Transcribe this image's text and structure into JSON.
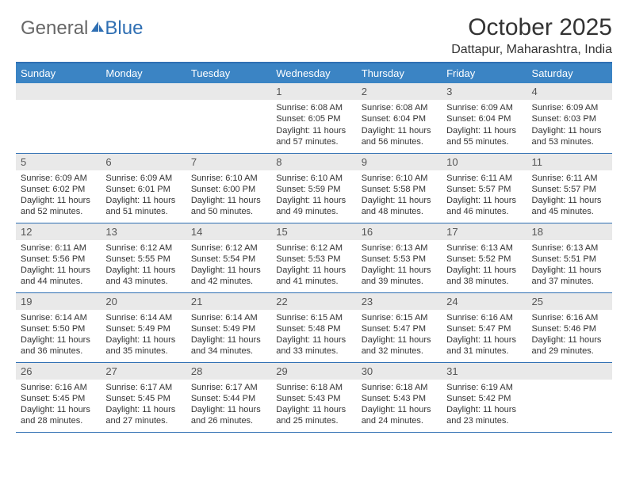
{
  "logo": {
    "text1": "General",
    "text2": "Blue"
  },
  "header": {
    "title": "October 2025",
    "subtitle": "Dattapur, Maharashtra, India"
  },
  "colors": {
    "accent": "#3b84c4",
    "rule": "#2f6fb3",
    "daybg": "#e9e9e9",
    "text": "#333333"
  },
  "calendar": {
    "day_labels": [
      "Sunday",
      "Monday",
      "Tuesday",
      "Wednesday",
      "Thursday",
      "Friday",
      "Saturday"
    ],
    "weeks": [
      [
        null,
        null,
        null,
        {
          "n": "1",
          "sr": "6:08 AM",
          "ss": "6:05 PM",
          "dl": "11 hours and 57 minutes."
        },
        {
          "n": "2",
          "sr": "6:08 AM",
          "ss": "6:04 PM",
          "dl": "11 hours and 56 minutes."
        },
        {
          "n": "3",
          "sr": "6:09 AM",
          "ss": "6:04 PM",
          "dl": "11 hours and 55 minutes."
        },
        {
          "n": "4",
          "sr": "6:09 AM",
          "ss": "6:03 PM",
          "dl": "11 hours and 53 minutes."
        }
      ],
      [
        {
          "n": "5",
          "sr": "6:09 AM",
          "ss": "6:02 PM",
          "dl": "11 hours and 52 minutes."
        },
        {
          "n": "6",
          "sr": "6:09 AM",
          "ss": "6:01 PM",
          "dl": "11 hours and 51 minutes."
        },
        {
          "n": "7",
          "sr": "6:10 AM",
          "ss": "6:00 PM",
          "dl": "11 hours and 50 minutes."
        },
        {
          "n": "8",
          "sr": "6:10 AM",
          "ss": "5:59 PM",
          "dl": "11 hours and 49 minutes."
        },
        {
          "n": "9",
          "sr": "6:10 AM",
          "ss": "5:58 PM",
          "dl": "11 hours and 48 minutes."
        },
        {
          "n": "10",
          "sr": "6:11 AM",
          "ss": "5:57 PM",
          "dl": "11 hours and 46 minutes."
        },
        {
          "n": "11",
          "sr": "6:11 AM",
          "ss": "5:57 PM",
          "dl": "11 hours and 45 minutes."
        }
      ],
      [
        {
          "n": "12",
          "sr": "6:11 AM",
          "ss": "5:56 PM",
          "dl": "11 hours and 44 minutes."
        },
        {
          "n": "13",
          "sr": "6:12 AM",
          "ss": "5:55 PM",
          "dl": "11 hours and 43 minutes."
        },
        {
          "n": "14",
          "sr": "6:12 AM",
          "ss": "5:54 PM",
          "dl": "11 hours and 42 minutes."
        },
        {
          "n": "15",
          "sr": "6:12 AM",
          "ss": "5:53 PM",
          "dl": "11 hours and 41 minutes."
        },
        {
          "n": "16",
          "sr": "6:13 AM",
          "ss": "5:53 PM",
          "dl": "11 hours and 39 minutes."
        },
        {
          "n": "17",
          "sr": "6:13 AM",
          "ss": "5:52 PM",
          "dl": "11 hours and 38 minutes."
        },
        {
          "n": "18",
          "sr": "6:13 AM",
          "ss": "5:51 PM",
          "dl": "11 hours and 37 minutes."
        }
      ],
      [
        {
          "n": "19",
          "sr": "6:14 AM",
          "ss": "5:50 PM",
          "dl": "11 hours and 36 minutes."
        },
        {
          "n": "20",
          "sr": "6:14 AM",
          "ss": "5:49 PM",
          "dl": "11 hours and 35 minutes."
        },
        {
          "n": "21",
          "sr": "6:14 AM",
          "ss": "5:49 PM",
          "dl": "11 hours and 34 minutes."
        },
        {
          "n": "22",
          "sr": "6:15 AM",
          "ss": "5:48 PM",
          "dl": "11 hours and 33 minutes."
        },
        {
          "n": "23",
          "sr": "6:15 AM",
          "ss": "5:47 PM",
          "dl": "11 hours and 32 minutes."
        },
        {
          "n": "24",
          "sr": "6:16 AM",
          "ss": "5:47 PM",
          "dl": "11 hours and 31 minutes."
        },
        {
          "n": "25",
          "sr": "6:16 AM",
          "ss": "5:46 PM",
          "dl": "11 hours and 29 minutes."
        }
      ],
      [
        {
          "n": "26",
          "sr": "6:16 AM",
          "ss": "5:45 PM",
          "dl": "11 hours and 28 minutes."
        },
        {
          "n": "27",
          "sr": "6:17 AM",
          "ss": "5:45 PM",
          "dl": "11 hours and 27 minutes."
        },
        {
          "n": "28",
          "sr": "6:17 AM",
          "ss": "5:44 PM",
          "dl": "11 hours and 26 minutes."
        },
        {
          "n": "29",
          "sr": "6:18 AM",
          "ss": "5:43 PM",
          "dl": "11 hours and 25 minutes."
        },
        {
          "n": "30",
          "sr": "6:18 AM",
          "ss": "5:43 PM",
          "dl": "11 hours and 24 minutes."
        },
        {
          "n": "31",
          "sr": "6:19 AM",
          "ss": "5:42 PM",
          "dl": "11 hours and 23 minutes."
        },
        null
      ]
    ],
    "labels": {
      "sunrise": "Sunrise:",
      "sunset": "Sunset:",
      "daylight": "Daylight:"
    }
  }
}
